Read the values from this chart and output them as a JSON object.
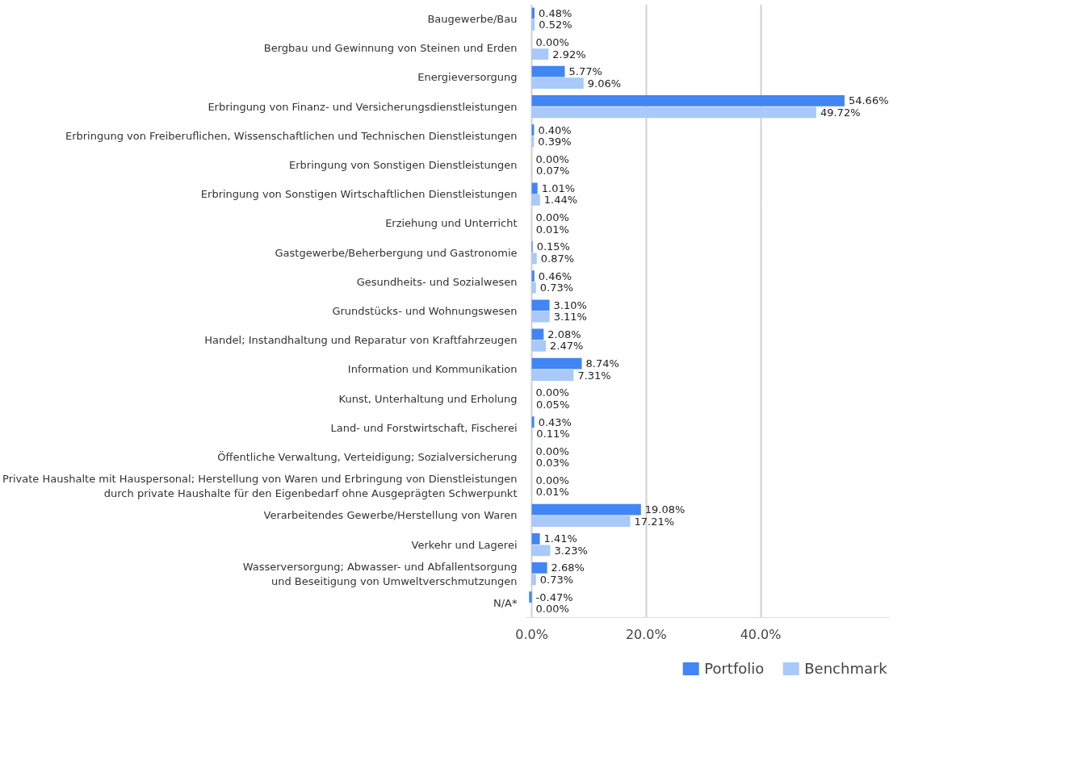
{
  "chart_data": {
    "type": "bar",
    "orientation": "horizontal",
    "categories": [
      "Baugewerbe/Bau",
      "Bergbau und Gewinnung von Steinen und Erden",
      "Energieversorgung",
      "Erbringung von Finanz- und Versicherungsdienstleistungen",
      "Erbringung von Freiberuflichen, Wissenschaftlichen und Technischen Dienstleistungen",
      "Erbringung von Sonstigen Dienstleistungen",
      "Erbringung von Sonstigen Wirtschaftlichen Dienstleistungen",
      "Erziehung und Unterricht",
      "Gastgewerbe/Beherbergung und Gastronomie",
      "Gesundheits- und Sozialwesen",
      "Grundstücks- und Wohnungswesen",
      "Handel; Instandhaltung und Reparatur von Kraftfahrzeugen",
      "Information und Kommunikation",
      "Kunst, Unterhaltung und Erholung",
      "Land- und Forstwirtschaft, Fischerei",
      "Öffentliche Verwaltung, Verteidigung; Sozialversicherung",
      "Private Haushalte mit Hauspersonal; Herstellung von Waren und Erbringung von Dienstleistungen\ndurch private Haushalte für den Eigenbedarf ohne Ausgeprägten Schwerpunkt",
      "Verarbeitendes Gewerbe/Herstellung von Waren",
      "Verkehr und Lagerei",
      "Wasserversorgung; Abwasser- und Abfallentsorgung\nund Beseitigung von Umweltverschmutzungen",
      "N/A*"
    ],
    "series": [
      {
        "name": "Portfolio",
        "color": "#4285f4",
        "values": [
          0.48,
          0.0,
          5.77,
          54.66,
          0.4,
          0.0,
          1.01,
          0.0,
          0.15,
          0.46,
          3.1,
          2.08,
          8.74,
          0.0,
          0.43,
          0.0,
          0.0,
          19.08,
          1.41,
          2.68,
          -0.47
        ],
        "value_labels": [
          "0.48%",
          "0.00%",
          "5.77%",
          "54.66%",
          "0.40%",
          "0.00%",
          "1.01%",
          "0.00%",
          "0.15%",
          "0.46%",
          "3.10%",
          "2.08%",
          "8.74%",
          "0.00%",
          "0.43%",
          "0.00%",
          "0.00%",
          "19.08%",
          "1.41%",
          "2.68%",
          "-0.47%"
        ]
      },
      {
        "name": "Benchmark",
        "color": "#a8c9fa",
        "values": [
          0.52,
          2.92,
          9.06,
          49.72,
          0.39,
          0.07,
          1.44,
          0.01,
          0.87,
          0.73,
          3.11,
          2.47,
          7.31,
          0.05,
          0.11,
          0.03,
          0.01,
          17.21,
          3.23,
          0.73,
          0.0
        ],
        "value_labels": [
          "0.52%",
          "2.92%",
          "9.06%",
          "49.72%",
          "0.39%",
          "0.07%",
          "1.44%",
          "0.01%",
          "0.87%",
          "0.73%",
          "3.11%",
          "2.47%",
          "7.31%",
          "0.05%",
          "0.11%",
          "0.03%",
          "0.01%",
          "17.21%",
          "3.23%",
          "0.73%",
          "0.00%"
        ]
      }
    ],
    "xlim": [
      -1,
      62.5
    ],
    "xticks": [
      {
        "value": 0,
        "label": "0.0%"
      },
      {
        "value": 20,
        "label": "20.0%"
      },
      {
        "value": 40,
        "label": "40.0%"
      }
    ],
    "grid": "x",
    "legend": "bottom"
  }
}
